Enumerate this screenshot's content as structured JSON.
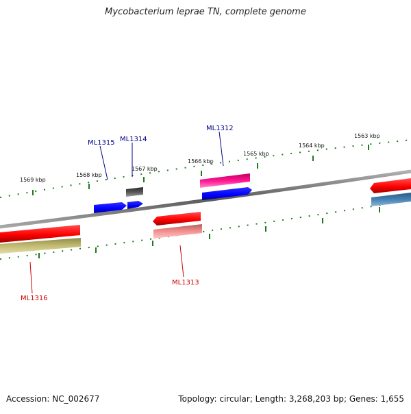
{
  "title": "Mycobacterium leprae TN, complete genome",
  "footer": {
    "accession": "Accession: NC_002677",
    "summary": "Topology: circular; Length: 3,268,203 bp; Genes: 1,655"
  },
  "ruler_labels": {
    "k1569": "1569 kbp",
    "k1568": "1568 kbp",
    "k1567": "1567 kbp",
    "k1566": "1566 kbp",
    "k1565": "1565 kbp",
    "k1564": "1564 kbp",
    "k1563": "1563 kbp"
  },
  "gene_labels": {
    "ML1312": "ML1312",
    "ML1313": "ML1313",
    "ML1314": "ML1314",
    "ML1315": "ML1315",
    "ML1316": "ML1316"
  },
  "colors": {
    "backbone": "#777777",
    "tick": "#1b7a1b",
    "cds_red": "#ff0000",
    "cds_pink": "#f08080",
    "cds_magenta": "#ff1493",
    "cds_blue": "#0000ff",
    "cds_steel": "#4682b4",
    "cds_gray": "#555555",
    "cds_olive": "#c2bb72",
    "label_blue": "#00008b",
    "label_red": "#cc0000"
  },
  "icons": {
    "legend": "none"
  }
}
